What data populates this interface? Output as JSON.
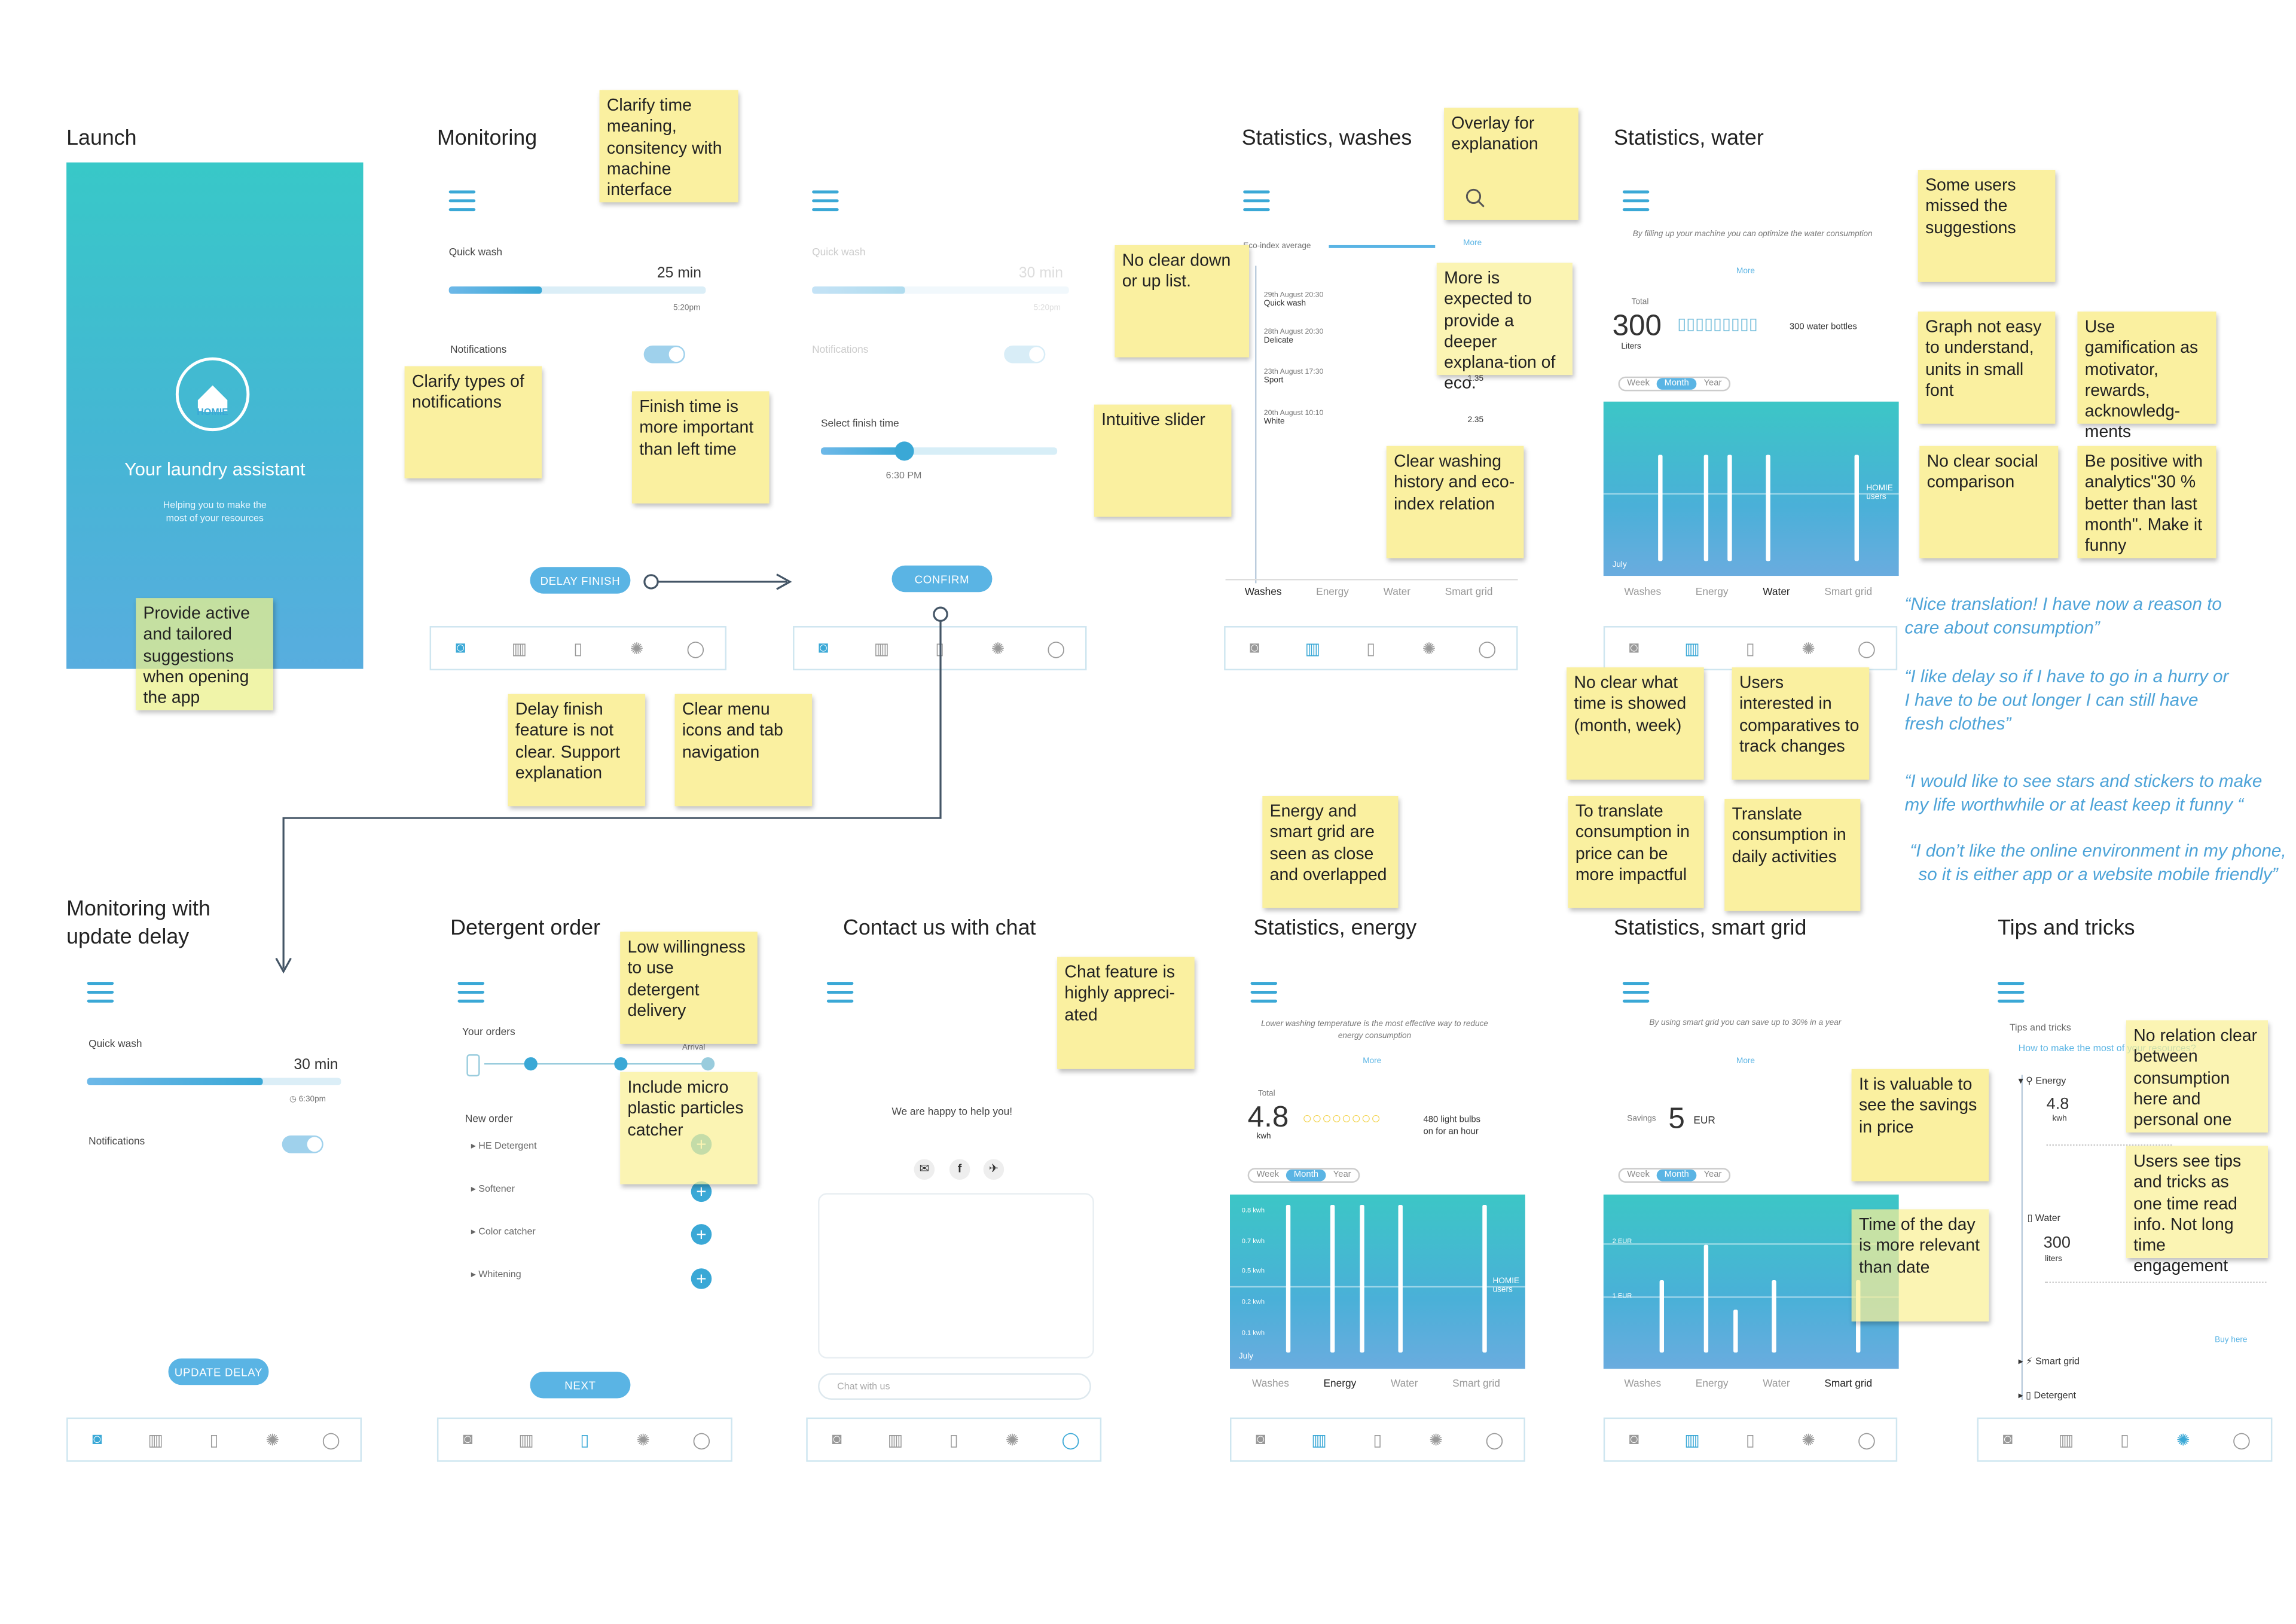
{
  "sections": {
    "launch": "Launch",
    "monitoring": "Monitoring",
    "stats_washes": "Statistics, washes",
    "stats_water": "Statistics, water",
    "monitoring_delay_1": "Monitoring with",
    "monitoring_delay_2": "update delay",
    "detergent": "Detergent order",
    "contact": "Contact us with chat",
    "stats_energy": "Statistics, energy",
    "stats_smartgrid": "Statistics, smart grid",
    "tips": "Tips and tricks"
  },
  "launch": {
    "logo": "HOMIE",
    "tagline": "Your laundry assistant",
    "sub1": "Helping you to make the",
    "sub2": "most of your resources"
  },
  "monitoring": {
    "program": "Quick wash",
    "time_left": "25 min",
    "finish": "5:20pm",
    "notifications": "Notifications",
    "delay_button": "DELAY FINISH",
    "select_finish": "Select finish time",
    "selected_time": "6:30 PM",
    "confirm_button": "CONFIRM",
    "faded_program": "Quick wash",
    "faded_time": "30 min",
    "faded_finish": "5:20pm",
    "faded_notifications": "Notifications"
  },
  "monitoring_delay": {
    "program": "Quick wash",
    "time_left": "30 min",
    "finish": "6:30pm",
    "notifications": "Notifications",
    "update_button": "UPDATE DELAY"
  },
  "washes": {
    "eco_label": "Eco-index average",
    "more": "More",
    "history": [
      {
        "date": "29th August 20:30",
        "program": "Quick wash",
        "value": ""
      },
      {
        "date": "28th August 20:30",
        "program": "Delicate",
        "value": ""
      },
      {
        "date": "23th August 17:30",
        "program": "Sport",
        "value": "1.35"
      },
      {
        "date": "20th August 10:10",
        "program": "White",
        "value": "2.35"
      }
    ],
    "categories": [
      "Washes",
      "Energy",
      "Water",
      "Smart grid"
    ]
  },
  "water": {
    "intro": "By filling up your machine you can optimize the water consumption",
    "more": "More",
    "total_label": "Total",
    "total_value": "300",
    "total_unit": "Liters",
    "equiv": "300 water bottles",
    "periods": [
      "Week",
      "Month",
      "Year"
    ],
    "homie_users": "HOMIE users",
    "categories": [
      "Washes",
      "Energy",
      "Water",
      "Smart grid"
    ],
    "xstart": "July"
  },
  "energy": {
    "intro": "Lower washing temperature is the most effective way to reduce energy consumption",
    "more": "More",
    "total_label": "Total",
    "total_value": "4.8",
    "total_unit": "kwh",
    "equiv1": "480 light bulbs",
    "equiv2": "on for an hour",
    "periods": [
      "Week",
      "Month",
      "Year"
    ],
    "homie_users": "HOMIE users",
    "y_ticks": [
      "0.8 kwh",
      "0.7 kwh",
      "0.5 kwh",
      "0.2 kwh",
      "0.1 kwh"
    ],
    "categories": [
      "Washes",
      "Energy",
      "Water",
      "Smart grid"
    ],
    "xstart": "July"
  },
  "smartgrid": {
    "intro": "By using smart grid you can save up to 30% in a year",
    "more": "More",
    "savings_label": "Savings",
    "savings_value": "5",
    "savings_unit": "EUR",
    "periods": [
      "Week",
      "Month",
      "Year"
    ],
    "y_ticks": [
      "2 EUR",
      "1 EUR"
    ],
    "categories": [
      "Washes",
      "Energy",
      "Water",
      "Smart grid"
    ]
  },
  "detergent": {
    "your_orders": "Your orders",
    "arrival": "Arrival",
    "new_order": "New order",
    "items": [
      "HE Detergent",
      "Softener",
      "Color catcher",
      "Whitening"
    ],
    "next_button": "NEXT"
  },
  "contact": {
    "greeting": "We are happy to help you!",
    "chat_placeholder": "Chat with us"
  },
  "tips": {
    "heading": "Tips and tricks",
    "link": "How to make the most of your resources?",
    "energy_label": "Energy",
    "energy_value": "4.8",
    "energy_unit": "kwh",
    "water_label": "Water",
    "water_value": "300",
    "water_unit": "liters",
    "smartgrid_label": "Smart grid",
    "detergent_label": "Detergent",
    "buy": "Buy here"
  },
  "stickies": {
    "s1": "Clarify time meaning, consitency with machine interface",
    "s2": "Overlay for explanation",
    "s3": "No clear down or up list.",
    "s4": "More is expected to provide a deeper explana-tion of eco.",
    "s5": "Intuitive slider",
    "s6": "Clear washing history and eco-index relation",
    "s7": "Some users missed the suggestions",
    "s8": "Graph not easy to understand, units in small font",
    "s9": "Use gamification as motivator, rewards, acknowledg-ments",
    "s10": "No clear social comparison",
    "s11": "Be positive with analytics\"30 % better than last month\". Make it funny",
    "s12": "Clarify types of notifications",
    "s13": "Finish time is more important than left time",
    "s14": "Provide active and tailored suggestions when opening the app",
    "s15": "Delay finish feature is not clear. Support explanation",
    "s16": "Clear menu icons and tab navigation",
    "s17": "No clear what time is showed (month, week)",
    "s18": "Users interested in comparatives to track changes",
    "s19": "Energy and smart grid are seen as close and overlapped",
    "s20": "To translate consumption in price can be more impactful",
    "s21": "Translate consumption in daily activities",
    "s22": "Low willingness to use detergent delivery",
    "s23": "Include micro plastic particles catcher",
    "s24": "Chat feature is highly appreci-ated",
    "s25": "It is valuable to see the savings in price",
    "s26": "Time of the day is more relevant than date",
    "s27": "No relation clear between consumption here and personal one",
    "s28": "Users see tips and tricks as one time read info. Not long time engagement"
  },
  "quotes": {
    "q1": "“Nice translation! I have now a reason to care about  consumption”",
    "q2": "“I like delay so if I have to go in a hurry or I have to be out longer I can still have fresh clothes”",
    "q3": "“I would like to see stars and stickers to make my life worthwhile or at least keep it funny “",
    "q4": "“I don’t like the online environment in my phone, so it is either app or a website mobile friendly”"
  },
  "colors": {
    "accent": "#3aa8d6",
    "sticky": "#faf0a0",
    "teal": "#3cc6c6",
    "quote": "#4da3d8"
  },
  "icons": [
    "hamburger-icon",
    "washer-icon",
    "chart-icon",
    "bottle-icon",
    "bulb-icon",
    "chat-icon",
    "search-icon"
  ]
}
